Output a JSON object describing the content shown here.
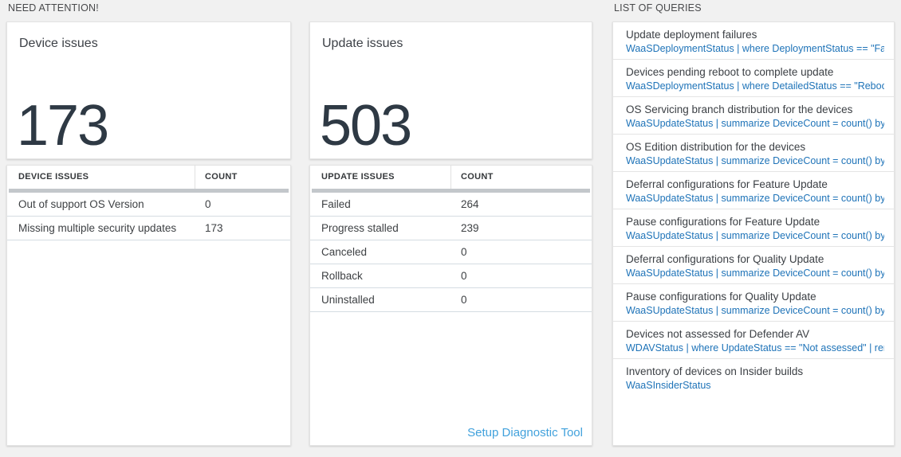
{
  "colors": {
    "page_bg": "#f1f1f1",
    "card_bg": "#ffffff",
    "card_border": "#e3e3e3",
    "query_link_blue": "#1e73b8",
    "setup_link_blue": "#41a1dc",
    "big_number": "#2e3944",
    "scrollbar": "#c3c7cb",
    "row_divider": "#d5dce2"
  },
  "sections": {
    "need_attention_label": "NEED ATTENTION!",
    "queries_label": "LIST OF QUERIES"
  },
  "device_panel": {
    "tile_title": "Device issues",
    "tile_value": "173",
    "table": {
      "columns": [
        "DEVICE ISSUES",
        "COUNT"
      ],
      "rows": [
        {
          "label": "Out of support OS Version",
          "count": "0"
        },
        {
          "label": "Missing multiple security updates",
          "count": "173"
        }
      ]
    }
  },
  "update_panel": {
    "tile_title": "Update issues",
    "tile_value": "503",
    "table": {
      "columns": [
        "UPDATE ISSUES",
        "COUNT"
      ],
      "rows": [
        {
          "label": "Failed",
          "count": "264"
        },
        {
          "label": "Progress stalled",
          "count": "239"
        },
        {
          "label": "Canceled",
          "count": "0"
        },
        {
          "label": "Rollback",
          "count": "0"
        },
        {
          "label": "Uninstalled",
          "count": "0"
        }
      ]
    },
    "footer_link_label": "Setup Diagnostic Tool"
  },
  "queries_panel": {
    "items": [
      {
        "title": "Update deployment failures",
        "query": "WaaSDeploymentStatus | where DeploymentStatus == \"Failed\" |..."
      },
      {
        "title": "Devices pending reboot to complete update",
        "query": "WaaSDeploymentStatus | where DetailedStatus == \"Reboot pend..."
      },
      {
        "title": "OS Servicing branch distribution for the devices",
        "query": "WaaSUpdateStatus | summarize DeviceCount = count() by OSSer..."
      },
      {
        "title": "OS Edition distribution for the devices",
        "query": "WaaSUpdateStatus | summarize DeviceCount = count() by OSEdit..."
      },
      {
        "title": "Deferral configurations for Feature Update",
        "query": "WaaSUpdateStatus | summarize DeviceCount = count() by Featur..."
      },
      {
        "title": "Pause configurations for Feature Update",
        "query": "WaaSUpdateStatus | summarize DeviceCount = count() by Featur..."
      },
      {
        "title": "Deferral configurations for Quality Update",
        "query": "WaaSUpdateStatus | summarize DeviceCount = count() by Qualit..."
      },
      {
        "title": "Pause configurations for Quality Update",
        "query": "WaaSUpdateStatus | summarize DeviceCount = count() by Qualit..."
      },
      {
        "title": "Devices not assessed for Defender AV",
        "query": "WDAVStatus | where UpdateStatus == \"Not assessed\" | render ta..."
      },
      {
        "title": "Inventory of devices on Insider builds",
        "query": "WaaSInsiderStatus"
      }
    ]
  }
}
